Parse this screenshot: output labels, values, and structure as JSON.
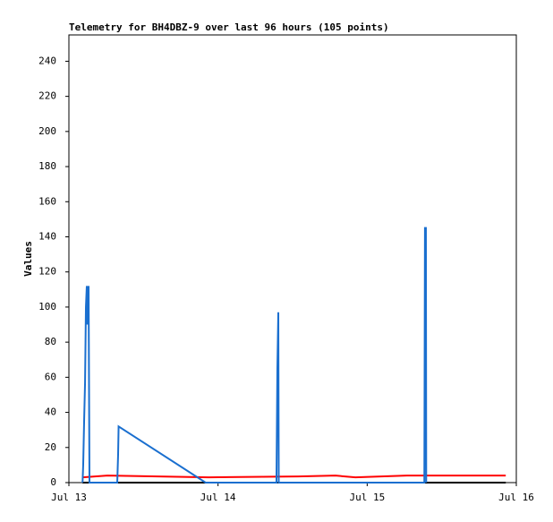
{
  "chart_data": {
    "type": "line",
    "title": "Telemetry for BH4DBZ-9 over last 96 hours (105 points)",
    "ylabel": "Values",
    "xlim": [
      0,
      72
    ],
    "ylim": [
      0,
      255
    ],
    "xticks": [
      {
        "value": 0,
        "label": "Jul 13"
      },
      {
        "value": 24,
        "label": "Jul 14"
      },
      {
        "value": 48,
        "label": "Jul 15"
      },
      {
        "value": 72,
        "label": "Jul 16"
      }
    ],
    "yticks": [
      0,
      20,
      40,
      60,
      80,
      100,
      120,
      140,
      160,
      180,
      200,
      220,
      240
    ],
    "grid": false,
    "series": [
      {
        "color": "#ff0000",
        "x": [
          2.2,
          6.2,
          22.5,
          36.9,
          42.9,
          46.1,
          54.4,
          70.3
        ],
        "values": [
          3,
          4,
          3,
          3.5,
          4,
          3,
          4,
          4
        ]
      },
      {
        "color": "#000000",
        "x": [
          2.2,
          70.3
        ],
        "values": [
          0,
          0
        ]
      },
      {
        "color": "#1a6fcf",
        "x": [
          2.2,
          2.3,
          2.45,
          2.6,
          2.74,
          2.88,
          3.0,
          3.17,
          3.24,
          3.31,
          7.78,
          7.92,
          8.0,
          22.0,
          33.4,
          33.55,
          33.7,
          33.77,
          57.2,
          57.3,
          57.45,
          57.5
        ],
        "values": [
          0,
          10,
          35,
          57,
          100,
          112,
          90,
          112,
          55,
          0,
          0,
          16,
          32,
          0,
          0,
          65,
          97,
          0,
          0,
          145,
          145,
          0
        ]
      }
    ]
  }
}
